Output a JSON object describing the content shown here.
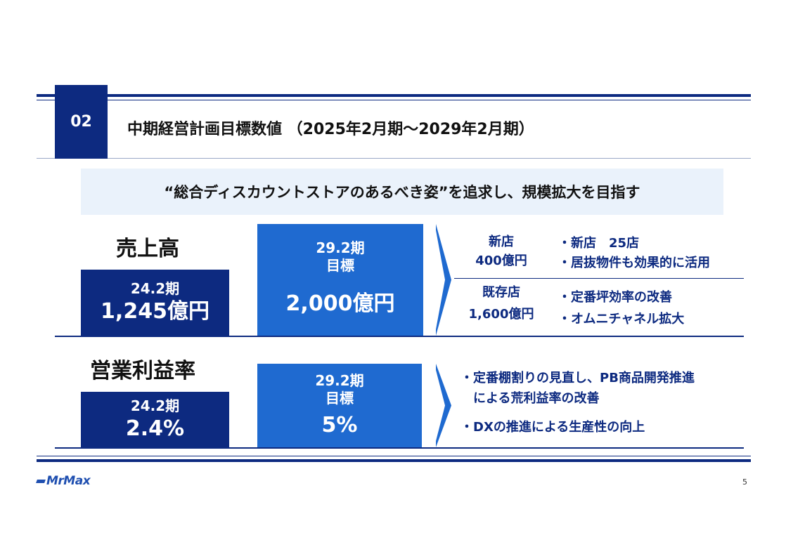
{
  "header": {
    "section_number": "02",
    "title": "中期経営計画目標数値 （2025年2月期～2029年2月期）"
  },
  "tagline": "“総合ディスカウントストアのあるべき姿”を追求し、規模拡大を目指す",
  "sales": {
    "title": "売上高",
    "current": {
      "period": "24.2期",
      "value": "1,245億円"
    },
    "target": {
      "period": "29.2期",
      "label": "目標",
      "value": "2,000億円"
    },
    "new_stores": {
      "label": "新店",
      "value": "400億円",
      "bullets": [
        "・新店　25店",
        "・居抜物件も効果的に活用"
      ]
    },
    "existing_stores": {
      "label": "既存店",
      "value": "1,600億円",
      "bullets": [
        "・定番坪効率の改善",
        "・オムニチャネル拡大"
      ]
    }
  },
  "margin": {
    "title": "営業利益率",
    "current": {
      "period": "24.2期",
      "value": "2.4%"
    },
    "target": {
      "period": "29.2期",
      "label": "目標",
      "value": "5%"
    },
    "bullets": [
      "・定番棚割りの見直し、PB商品開発推進",
      "　による荒利益率の改善",
      "・DXの推進による生産性の向上"
    ]
  },
  "footer": {
    "logo": "MrMax",
    "page": "5"
  },
  "colors": {
    "navy": "#0d2a80",
    "blue": "#1f6ad0",
    "tint": "#eaf2fb"
  }
}
